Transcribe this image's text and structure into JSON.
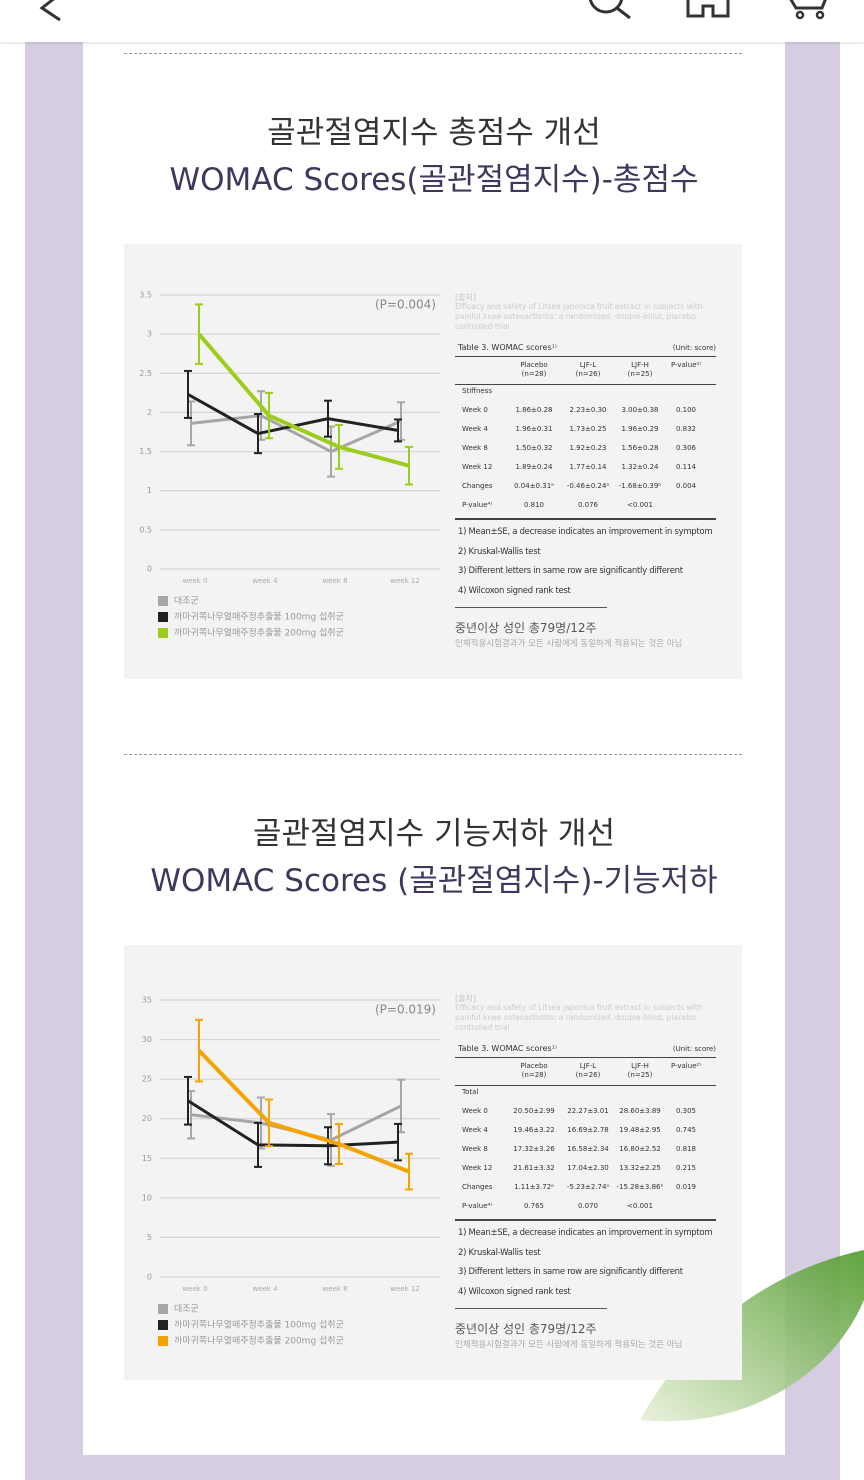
{
  "chart_data": [
    {
      "type": "line",
      "annotation": "(P=0.004)",
      "categories": [
        "week 0",
        "week 4",
        "week 8",
        "week 12"
      ],
      "ylim": [
        0,
        3.5
      ],
      "yticks": [
        0,
        0.5,
        1,
        1.5,
        2,
        2.5,
        3,
        3.5
      ],
      "grid": true,
      "series": [
        {
          "name": "대조군",
          "color": "#a6a6a6",
          "values": [
            1.86,
            1.96,
            1.5,
            1.89
          ],
          "errors": [
            0.28,
            0.31,
            0.32,
            0.24
          ]
        },
        {
          "name": "까마귀쪽나무열매주정추출물 100mg 섭취군",
          "color": "#222222",
          "values": [
            2.23,
            1.73,
            1.92,
            1.77
          ],
          "errors": [
            0.3,
            0.25,
            0.23,
            0.14
          ]
        },
        {
          "name": "까마귀쪽나무열매주정추출물 200mg 섭취군",
          "color": "#9ccc1c",
          "values": [
            3.0,
            1.96,
            1.56,
            1.32
          ],
          "errors": [
            0.38,
            0.29,
            0.28,
            0.24
          ]
        }
      ]
    },
    {
      "type": "line",
      "annotation": "(P=0.019)",
      "categories": [
        "week 0",
        "week 4",
        "week 8",
        "week 12"
      ],
      "ylim": [
        0,
        35
      ],
      "yticks": [
        0,
        5,
        10,
        15,
        20,
        25,
        30,
        35
      ],
      "grid": true,
      "series": [
        {
          "name": "대조군",
          "color": "#a6a6a6",
          "values": [
            20.5,
            19.46,
            17.32,
            21.61
          ],
          "errors": [
            2.99,
            3.22,
            3.26,
            3.32
          ]
        },
        {
          "name": "까마귀쪽나무열매주정추출물 100mg 섭취군",
          "color": "#222222",
          "values": [
            22.27,
            16.69,
            16.58,
            17.04
          ],
          "errors": [
            3.01,
            2.78,
            2.34,
            2.3
          ]
        },
        {
          "name": "까마귀쪽나무열매주정추출물 200mg 섭취군",
          "color": "#f5a300",
          "values": [
            28.6,
            19.48,
            16.8,
            13.32
          ],
          "errors": [
            3.89,
            2.95,
            2.52,
            2.25
          ]
        }
      ]
    }
  ],
  "sections": [
    {
      "title": "골관절염지수 총점수 개선",
      "subtitle": "WOMAC Scores(골관절염지수)-총점수",
      "source_label": "[출처]",
      "source": "Efficacy and safety of Litsea japonica fruit extract in subjects with painful knee osteoarthritis: a randomized, double-blind, placebo controlled trial",
      "table": {
        "caption": "Table 3. WOMAC scores¹⁾",
        "unit": "(Unit: score)",
        "columns": [
          [
            "Placebo",
            "(n=28)"
          ],
          [
            "LJF-L",
            "(n=26)"
          ],
          [
            "LJF-H",
            "(n=25)"
          ],
          [
            "P-value²⁾"
          ]
        ],
        "rows": [
          [
            "Stiffness"
          ],
          [
            "Week 0",
            "1.86±0.28",
            "2.23±0.30",
            "3.00±0.38",
            "0.100"
          ],
          [
            "Week 4",
            "1.96±0.31",
            "1.73±0.25",
            "1.96±0.29",
            "0.832"
          ],
          [
            "Week 8",
            "1.50±0.32",
            "1.92±0.23",
            "1.56±0.28",
            "0.306"
          ],
          [
            "Week 12",
            "1.89±0.24",
            "1.77±0.14",
            "1.32±0.24",
            "0.114"
          ],
          [
            "Changes",
            "0.04±0.31ᵃ",
            "-0.46±0.24ᵃ",
            "-1.68±0.39ᵇ",
            "0.004"
          ],
          [
            "P-value⁴⁾",
            "0.810",
            "0.076",
            "<0.001"
          ]
        ]
      },
      "notes": [
        "1) Mean±SE, a decrease indicates an improvement in symptom",
        "2) Kruskal-Wallis test",
        "3) Different letters in same row are significantly different",
        "4) Wilcoxon signed rank test"
      ],
      "summary": "중년이상 성인 총79명/12주",
      "disclaimer": "인체적용시험결과가 모든 사람에게 동일하게 적용되는 것은 아님"
    },
    {
      "title": "골관절염지수 기능저하 개선",
      "subtitle": "WOMAC Scores (골관절염지수)-기능저하",
      "source_label": "[출처]",
      "source": "Efficacy and safety of Litsea japonica fruit extract in subjects with painful knee osteoarthritis: a randomized, double-blind, placebo controlled trial",
      "table": {
        "caption": "Table 3. WOMAC scores¹⁾",
        "unit": "(Unit: score)",
        "columns": [
          [
            "Placebo",
            "(n=28)"
          ],
          [
            "LJF-L",
            "(n=26)"
          ],
          [
            "LJF-H",
            "(n=25)"
          ],
          [
            "P-value²⁾"
          ]
        ],
        "rows": [
          [
            "Total"
          ],
          [
            "Week 0",
            "20.50±2.99",
            "22.27±3.01",
            "28.60±3.89",
            "0.305"
          ],
          [
            "Week 4",
            "19.46±3.22",
            "16.69±2.78",
            "19.48±2.95",
            "0.745"
          ],
          [
            "Week 8",
            "17.32±3.26",
            "16.58±2.34",
            "16.80±2.52",
            "0.818"
          ],
          [
            "Week 12",
            "21.61±3.32",
            "17.04±2.30",
            "13.32±2.25",
            "0.215"
          ],
          [
            "Changes",
            "1.11±3.72ᵃ",
            "-5.23±2.74ᵃ",
            "-15.28±3.86ᵇ",
            "0.019"
          ],
          [
            "P-value⁴⁾",
            "0.765",
            "0.070",
            "<0.001"
          ]
        ]
      },
      "notes": [
        "1) Mean±SE, a decrease indicates an improvement in symptom",
        "2) Kruskal-Wallis test",
        "3) Different letters in same row are significantly different",
        "4) Wilcoxon signed rank test"
      ],
      "summary": "중년이상 성인 총79명/12주",
      "disclaimer": "인체적용시험결과가 모든 사람에게 동일하게 적용되는 것은 아님"
    }
  ]
}
